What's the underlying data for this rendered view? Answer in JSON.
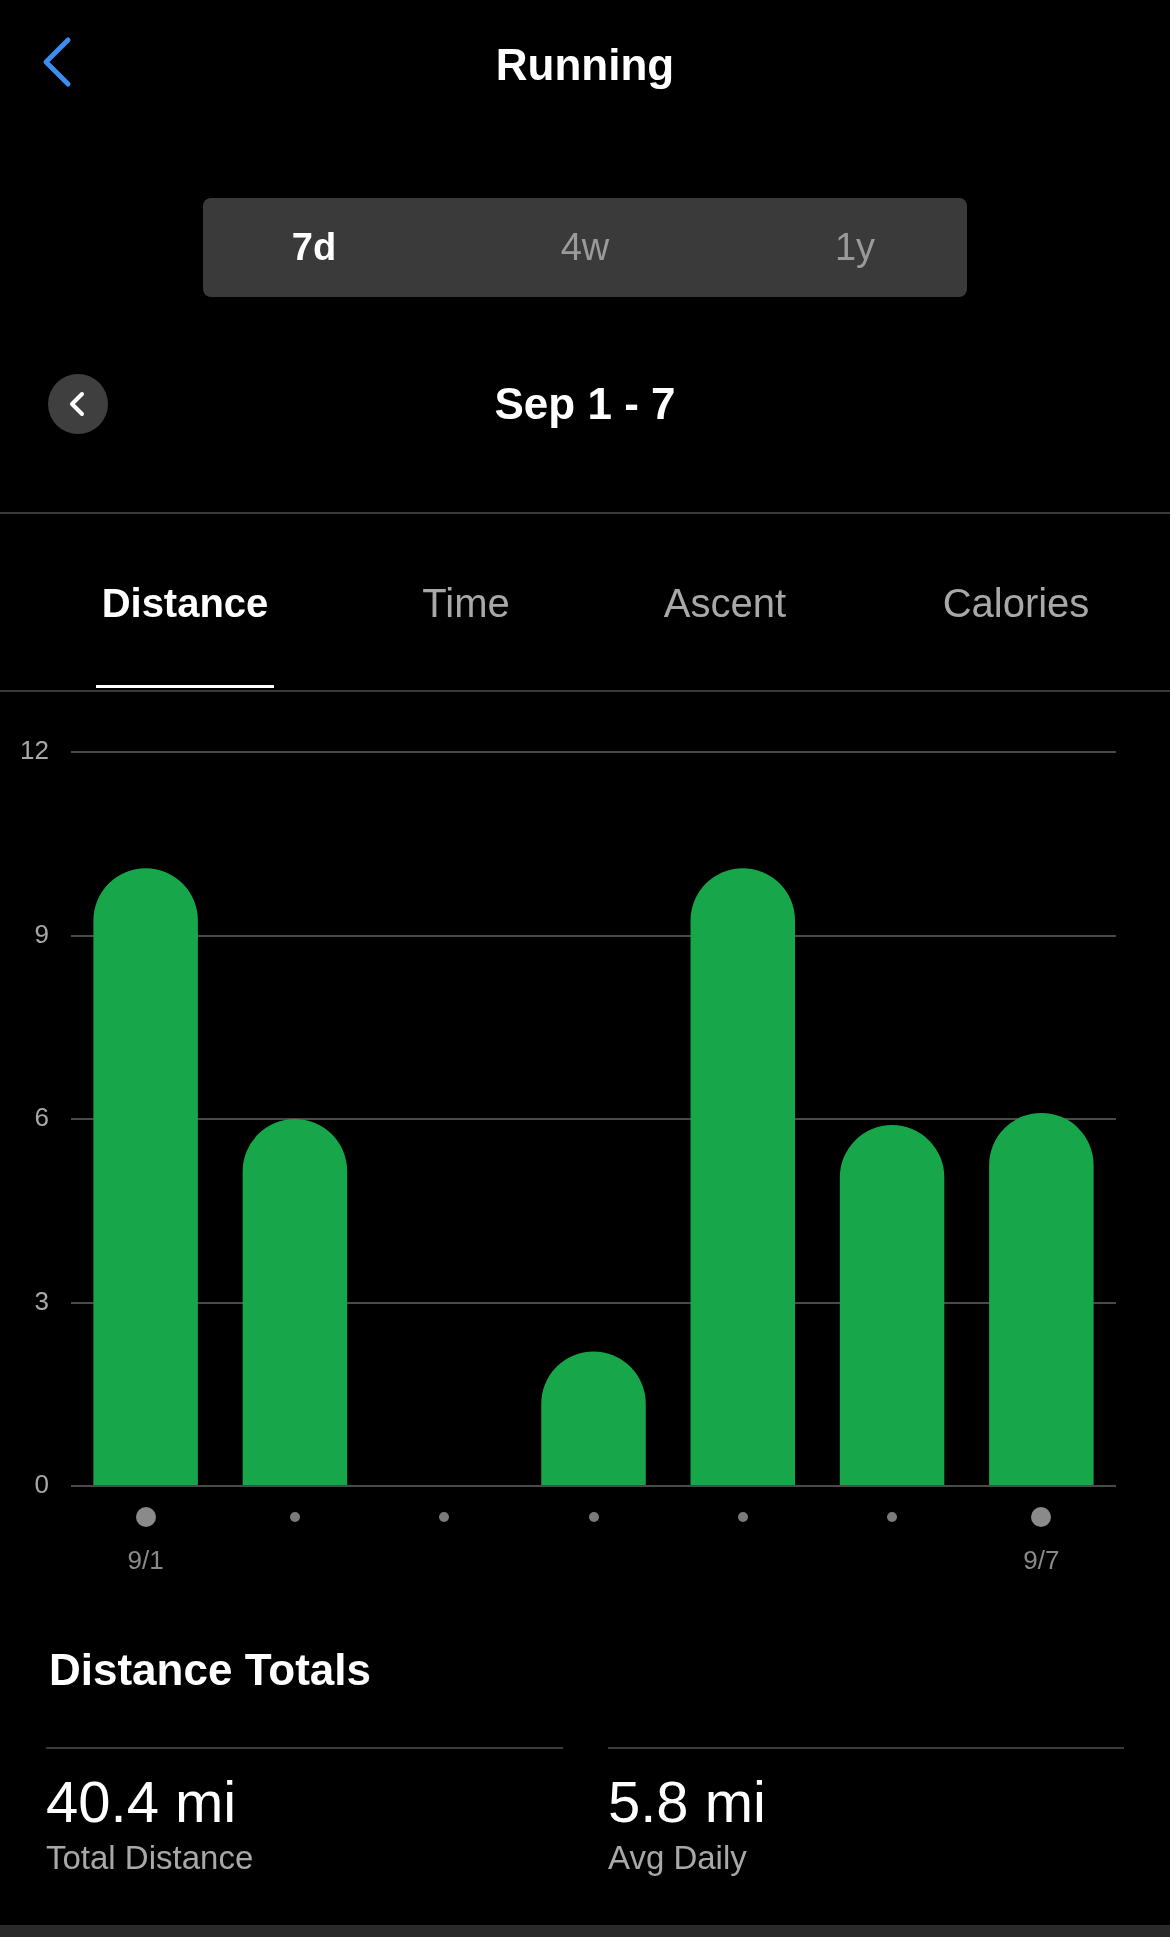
{
  "chart_data": {
    "type": "bar",
    "title": "Running",
    "subtitle": "Sep 1 - 7",
    "categories": [
      "9/1",
      null,
      null,
      null,
      null,
      null,
      "9/7"
    ],
    "values": [
      10.1,
      6.0,
      0,
      2.2,
      10.1,
      5.9,
      6.1
    ],
    "color": "#17a64a",
    "ylim": [
      0,
      12
    ],
    "yticks": [
      0,
      3,
      6,
      9,
      12
    ],
    "grid": "y",
    "legend": false,
    "annotations": [
      "7d",
      "4w",
      "1y",
      "Distance",
      "Time",
      "Ascent",
      "Calories",
      "Distance Totals",
      "40.4 mi",
      "Total Distance",
      "5.8 mi",
      "Avg Daily"
    ]
  }
}
